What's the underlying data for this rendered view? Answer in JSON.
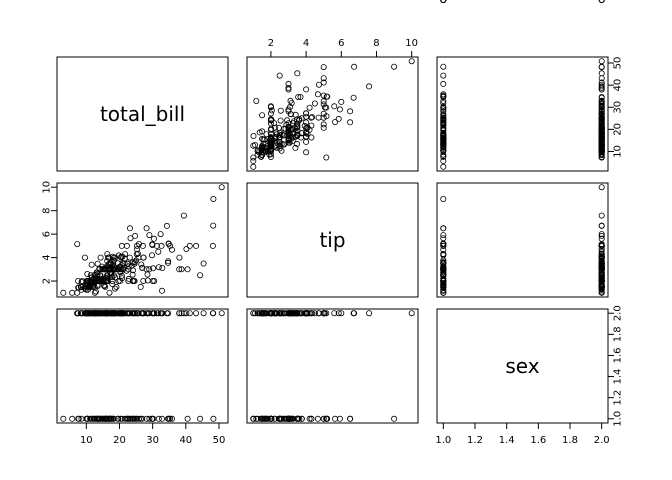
{
  "chart_data": {
    "type": "scatter",
    "subtype": "pairs-matrix",
    "variables": [
      "total_bill",
      "tip",
      "sex"
    ],
    "ranges": {
      "total_bill": [
        3.07,
        50.81
      ],
      "tip": [
        1.0,
        10.0
      ],
      "sex": [
        1.0,
        2.0
      ]
    },
    "ticks": {
      "total_bill": [
        10,
        20,
        30,
        40,
        50
      ],
      "tip": [
        2,
        4,
        6,
        8,
        10
      ],
      "sex": [
        1.0,
        1.2,
        1.4,
        1.6,
        1.8,
        2.0
      ]
    },
    "tick_labels": {
      "total_bill": [
        "10",
        "20",
        "30",
        "40",
        "50"
      ],
      "tip": [
        "2",
        "4",
        "6",
        "8",
        "10"
      ],
      "sex": [
        "1.0",
        "1.2",
        "1.4",
        "1.6",
        "1.8",
        "2.0"
      ]
    },
    "points": {
      "total_bill": [
        16.99,
        10.34,
        21.01,
        23.68,
        24.59,
        25.29,
        8.77,
        26.88,
        15.04,
        14.78,
        10.27,
        35.26,
        15.42,
        18.43,
        14.83,
        21.58,
        10.33,
        16.29,
        16.97,
        20.65,
        17.92,
        20.29,
        15.77,
        39.42,
        19.82,
        17.81,
        13.37,
        12.69,
        21.7,
        19.65,
        9.55,
        18.35,
        15.06,
        20.69,
        17.78,
        24.06,
        16.31,
        16.93,
        18.69,
        31.27,
        16.04,
        17.46,
        13.94,
        9.68,
        30.4,
        18.29,
        22.23,
        32.4,
        28.55,
        18.04,
        12.54,
        10.29,
        34.81,
        9.94,
        25.56,
        19.49,
        38.01,
        26.41,
        11.24,
        48.27,
        20.29,
        13.81,
        11.02,
        18.29,
        17.59,
        20.08,
        16.45,
        3.07,
        20.23,
        15.01,
        12.02,
        17.07,
        26.86,
        25.28,
        14.73,
        10.51,
        17.92,
        27.2,
        22.76,
        17.29,
        19.44,
        16.66,
        10.07,
        32.68,
        15.98,
        34.83,
        13.03,
        18.28,
        24.71,
        21.16,
        28.97,
        22.49,
        5.75,
        16.32,
        22.75,
        40.17,
        27.28,
        12.03,
        21.01,
        12.46,
        11.35,
        15.38,
        44.3,
        22.42,
        20.92,
        15.36,
        20.49,
        25.21,
        18.24,
        14.31,
        14.0,
        7.25,
        38.07,
        23.95,
        25.71,
        17.31,
        29.93,
        10.65,
        12.43,
        24.08,
        11.69,
        13.42,
        14.26,
        15.95,
        12.48,
        29.8,
        8.52,
        14.52,
        11.38,
        22.82,
        19.08,
        20.27,
        11.17,
        12.26,
        18.26,
        8.51,
        10.33,
        14.15,
        16.0,
        13.16,
        17.47,
        34.3,
        41.19,
        27.05,
        16.43,
        8.35,
        18.64,
        11.87,
        9.78,
        7.51,
        14.07,
        13.13,
        17.26,
        24.55,
        19.77,
        29.85,
        48.17,
        25.0,
        13.39,
        16.49,
        21.5,
        12.66,
        16.21,
        13.81,
        17.51,
        24.52,
        20.76,
        31.71,
        10.59,
        10.63,
        50.81,
        15.81,
        7.25,
        31.85,
        16.82,
        32.9,
        17.89,
        14.48,
        9.6,
        34.63,
        34.65,
        23.33,
        45.35,
        23.17,
        40.55,
        20.69,
        20.9,
        30.46,
        18.15,
        23.1,
        15.69,
        19.81,
        28.44,
        15.48,
        16.58,
        7.56,
        10.34,
        43.11,
        13.0,
        13.51,
        18.71,
        12.74,
        13.0,
        16.4,
        20.53,
        16.47,
        26.59,
        38.73,
        24.27,
        12.76,
        30.06,
        25.89,
        48.33,
        13.27,
        28.17,
        12.9,
        28.15,
        11.59,
        7.74,
        30.14,
        12.16,
        13.42,
        8.58,
        15.98,
        13.42,
        16.27,
        10.09,
        20.45,
        13.28,
        22.12,
        24.01,
        15.69,
        11.61,
        10.77,
        15.53,
        10.07,
        12.6,
        32.83,
        35.83,
        29.03,
        27.18,
        22.67,
        17.82,
        18.78
      ],
      "tip": [
        1.01,
        1.66,
        3.5,
        3.31,
        3.61,
        4.71,
        2.0,
        3.12,
        1.96,
        3.23,
        1.71,
        5.0,
        1.57,
        3.0,
        3.02,
        3.92,
        1.67,
        3.71,
        3.5,
        3.35,
        4.08,
        2.75,
        2.23,
        7.58,
        3.18,
        2.34,
        2.0,
        2.0,
        4.3,
        3.0,
        1.45,
        2.5,
        3.0,
        2.45,
        3.27,
        3.6,
        2.0,
        3.07,
        2.31,
        5.0,
        2.24,
        2.54,
        3.06,
        1.32,
        5.6,
        3.0,
        5.0,
        6.0,
        2.05,
        3.0,
        2.5,
        2.6,
        5.2,
        1.56,
        4.34,
        3.51,
        3.0,
        1.5,
        1.76,
        6.73,
        3.21,
        2.0,
        1.98,
        3.76,
        2.64,
        3.15,
        2.47,
        1.0,
        2.01,
        2.09,
        1.97,
        3.0,
        3.14,
        5.0,
        2.2,
        1.25,
        3.08,
        4.0,
        3.0,
        2.71,
        3.0,
        3.4,
        1.83,
        5.0,
        2.03,
        5.17,
        2.0,
        4.0,
        5.85,
        3.0,
        3.0,
        3.5,
        1.0,
        4.3,
        3.25,
        4.73,
        4.0,
        1.5,
        3.0,
        1.5,
        2.5,
        3.0,
        2.5,
        3.48,
        4.08,
        1.64,
        4.06,
        4.29,
        3.76,
        4.0,
        3.0,
        1.0,
        4.0,
        2.55,
        4.0,
        3.5,
        5.07,
        1.5,
        1.8,
        2.92,
        2.31,
        1.68,
        2.5,
        2.0,
        2.52,
        4.2,
        1.48,
        2.0,
        2.0,
        2.18,
        1.5,
        2.83,
        1.5,
        2.0,
        3.25,
        1.25,
        2.0,
        2.0,
        2.0,
        2.75,
        3.5,
        6.7,
        5.0,
        5.0,
        2.3,
        1.5,
        1.36,
        1.63,
        1.73,
        2.0,
        2.5,
        2.0,
        2.74,
        2.0,
        2.0,
        5.14,
        5.0,
        3.75,
        2.61,
        2.0,
        3.5,
        2.5,
        2.0,
        2.0,
        3.0,
        3.48,
        2.24,
        4.5,
        1.61,
        2.0,
        10.0,
        3.16,
        5.15,
        3.18,
        4.0,
        3.11,
        2.0,
        2.0,
        4.0,
        3.55,
        3.68,
        5.65,
        3.5,
        6.5,
        3.0,
        5.0,
        3.5,
        2.0,
        3.5,
        4.0,
        1.5,
        4.19,
        2.56,
        2.02,
        4.0,
        1.44,
        2.0,
        5.0,
        2.0,
        2.0,
        4.0,
        2.01,
        2.0,
        2.5,
        4.0,
        3.23,
        3.41,
        3.0,
        2.03,
        2.23,
        2.0,
        5.16,
        9.0,
        2.5,
        6.5,
        1.1,
        3.0,
        1.5,
        1.44,
        3.09,
        2.2,
        3.48,
        1.92,
        3.0,
        1.58,
        2.5,
        2.0,
        3.0,
        2.72,
        2.88,
        2.0,
        3.0,
        3.39,
        1.47,
        3.0,
        1.25,
        1.0,
        1.17,
        4.67,
        5.92,
        2.0,
        2.0,
        1.75,
        3.0
      ],
      "sex": [
        1,
        2,
        2,
        2,
        1,
        2,
        2,
        2,
        2,
        2,
        2,
        1,
        2,
        2,
        1,
        2,
        1,
        2,
        1,
        2,
        2,
        1,
        1,
        2,
        2,
        2,
        2,
        2,
        1,
        1,
        2,
        2,
        1,
        1,
        2,
        2,
        2,
        1,
        2,
        2,
        2,
        2,
        2,
        2,
        2,
        2,
        2,
        2,
        2,
        2,
        2,
        1,
        1,
        2,
        2,
        1,
        2,
        1,
        2,
        2,
        2,
        1,
        2,
        2,
        2,
        2,
        1,
        1,
        2,
        2,
        2,
        1,
        1,
        1,
        1,
        2,
        2,
        2,
        2,
        2,
        2,
        2,
        1,
        2,
        2,
        1,
        2,
        2,
        2,
        2,
        2,
        2,
        1,
        1,
        1,
        2,
        2,
        2,
        2,
        2,
        2,
        1,
        1,
        1,
        2,
        2,
        2,
        2,
        1,
        2,
        2,
        2,
        2,
        1,
        2,
        1,
        2,
        2,
        1,
        1,
        2,
        1,
        1,
        1,
        2,
        1,
        2,
        2,
        1,
        2,
        2,
        2,
        1,
        1,
        1,
        1,
        1,
        1,
        1,
        1,
        2,
        2,
        2,
        2,
        2,
        2,
        2,
        1,
        2,
        2,
        2,
        2,
        2,
        2,
        2,
        1,
        2,
        1,
        1,
        2,
        2,
        2,
        2,
        2,
        1,
        2,
        2,
        2,
        2,
        2,
        2,
        2,
        2,
        1,
        2,
        2,
        2,
        2,
        2,
        1,
        2,
        1,
        2,
        1,
        1,
        2,
        2,
        2,
        2,
        2,
        2,
        2,
        2,
        1,
        2,
        1,
        2,
        2,
        2,
        1,
        2,
        1,
        2,
        2,
        2,
        2,
        2,
        2,
        1,
        2,
        2,
        1,
        1,
        2,
        1,
        2,
        2,
        2,
        1,
        1,
        2,
        2,
        2,
        1,
        1,
        2,
        2,
        2,
        2,
        1,
        2,
        2,
        2,
        2,
        2,
        2,
        2,
        1,
        1,
        1,
        2,
        2,
        1,
        2,
        1,
        2,
        1,
        2,
        1
      ]
    }
  }
}
